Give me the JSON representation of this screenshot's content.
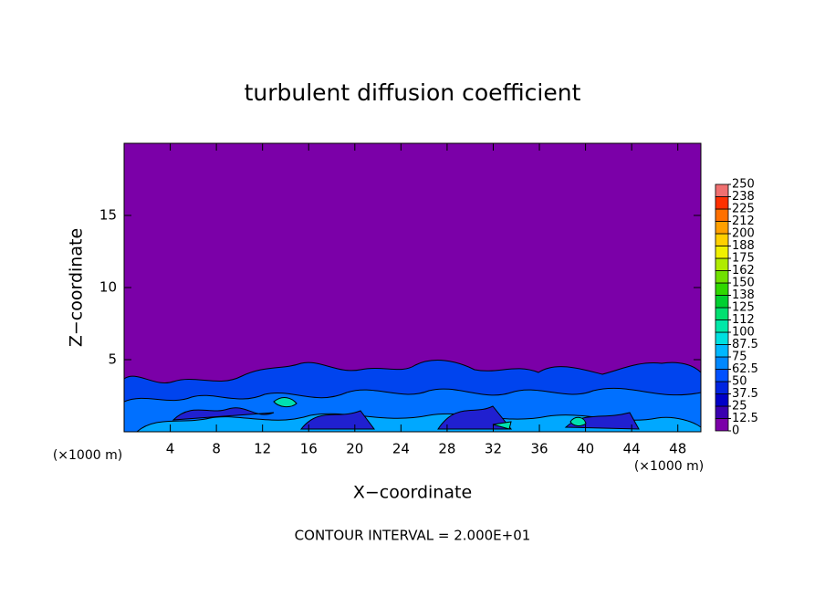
{
  "chart_data": {
    "type": "contour",
    "title": "turbulent diffusion coefficient",
    "xlabel": "X−coordinate",
    "ylabel": "Z−coordinate",
    "x_unit_label_left": "(×1000 m)",
    "x_unit_label_right": "(×1000 m)",
    "footer": "CONTOUR INTERVAL = 2.000E+01",
    "xlim": [
      0,
      50
    ],
    "xticks": [
      4,
      8,
      12,
      16,
      20,
      24,
      28,
      32,
      36,
      40,
      44,
      48
    ],
    "ylim": [
      0,
      20
    ],
    "yticks": [
      5,
      10,
      15
    ],
    "background_color": "#7b00a8",
    "colorbar": {
      "levels": [
        0,
        12.5,
        25,
        37.5,
        50,
        62.5,
        75,
        87.5,
        100,
        {
          "value": 112.5,
          "label": "112"
        },
        125,
        {
          "value": 137.5,
          "label": "138"
        },
        150,
        {
          "value": 162.5,
          "label": "162"
        },
        175,
        {
          "value": 187.5,
          "label": "188"
        },
        200,
        {
          "value": 212.5,
          "label": "212"
        },
        225,
        {
          "value": 237.5,
          "label": "238"
        },
        250
      ],
      "colors": [
        "#7b00a8",
        "#3a00b0",
        "#0000c8",
        "#0024e0",
        "#0050ff",
        "#0088ff",
        "#00b8ff",
        "#00e0e0",
        "#00e8a8",
        "#00e070",
        "#00d030",
        "#30d800",
        "#70e000",
        "#b0ec00",
        "#f0f000",
        "#ffd000",
        "#ffa000",
        "#ff7000",
        "#ff3000",
        "#f07070"
      ]
    }
  }
}
